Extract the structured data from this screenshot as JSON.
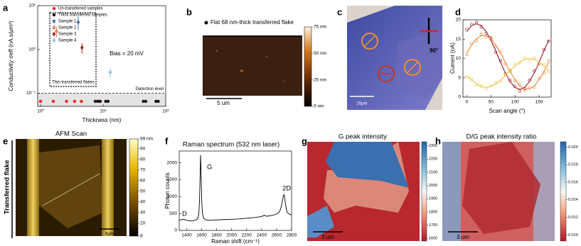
{
  "chart_data": [
    {
      "panel": "a",
      "type": "scatter",
      "xlabel": "Thickness (nm)",
      "ylabel": "Conductivity σeff (nA.s/μm²)",
      "xscale": "log",
      "yscale": "log",
      "xlim": [
        0.9,
        100
      ],
      "ylim": [
        0.05,
        10
      ],
      "xticks": [
        {
          "value": 1,
          "label": "10⁰"
        },
        {
          "value": 10,
          "label": "10¹"
        },
        {
          "value": 100,
          "label": "10²"
        }
      ],
      "yticks": [
        {
          "value": 0.1,
          "label": "10⁻¹"
        },
        {
          "value": 1,
          "label": "10⁰"
        },
        {
          "value": 10,
          "label": "10¹"
        }
      ],
      "series": [
        {
          "name": "Un-transferred samples",
          "color": "#e8262a",
          "marker": "circle",
          "x": [
            1.0,
            1.6,
            2.6,
            3.5,
            4.5,
            8.6
          ],
          "values": [
            0.065,
            0.065,
            0.065,
            0.065,
            0.065,
            0.065
          ]
        },
        {
          "name": "Thick transferred samples",
          "color": "#111111",
          "marker": "circle",
          "x": [
            7.5,
            8.2,
            9,
            11,
            12,
            44,
            48,
            70,
            76
          ],
          "values": [
            0.065,
            0.065,
            0.065,
            0.065,
            0.065,
            0.065,
            0.065,
            0.065,
            0.065
          ]
        },
        {
          "name": "Sample 1",
          "color": "#3a6fb7",
          "marker": "diamond",
          "x": [
            4.0
          ],
          "values": [
            4.2
          ],
          "errors": [
            1.4
          ]
        },
        {
          "name": "Sample 2",
          "color": "#e07b5a",
          "marker": "diamond",
          "x": [
            1.8
          ],
          "values": [
            2.6
          ],
          "errors": [
            0.7
          ]
        },
        {
          "name": "Sample 3",
          "color": "#a51c24",
          "marker": "diamond",
          "x": [
            4.6
          ],
          "values": [
            1.1
          ],
          "errors": [
            0.3
          ]
        },
        {
          "name": "Sample 4",
          "color": "#8fc1e3",
          "marker": "diamond",
          "x": [
            13
          ],
          "values": [
            0.3
          ],
          "errors": [
            0.07
          ]
        }
      ],
      "detection_level": {
        "value": 0.1,
        "label": "Detection level"
      },
      "annotations": [
        "Bias = 20 mV",
        "Thin transferred flakes"
      ]
    },
    {
      "panel": "d",
      "type": "scatter",
      "xlabel": "Scan angle (°)",
      "ylabel": "Current (nA)",
      "xlim": [
        -8,
        175
      ],
      "ylim": [
        0,
        20
      ],
      "xticks": [
        0,
        50,
        100,
        150
      ],
      "yticks": [
        0,
        5,
        10,
        15,
        20
      ],
      "x": [
        0,
        10,
        20,
        30,
        40,
        50,
        60,
        70,
        80,
        90,
        100,
        110,
        120,
        130,
        140,
        150,
        160,
        170
      ],
      "series": [
        {
          "color": "#9e1a2c",
          "marker": "open-circle",
          "values": [
            17.5,
            18.8,
            19.3,
            18.2,
            16.5,
            15.2,
            11.6,
            9.4,
            6.0,
            4.3,
            2.8,
            1.6,
            2.2,
            4.4,
            6.8,
            8.6,
            12.3,
            14.5
          ],
          "fit": [
            17.0,
            18.5,
            19.0,
            18.5,
            17.0,
            14.75,
            12.0,
            9.0,
            6.25,
            4.0,
            2.5,
            2.0,
            2.5,
            4.0,
            6.25,
            9.0,
            12.0,
            14.75
          ]
        },
        {
          "color": "#e8873a",
          "marker": "open-circle",
          "values": [
            11.0,
            13.9,
            14.6,
            16.3,
            15.5,
            15.4,
            13.0,
            11.8,
            8.6,
            6.9,
            4.2,
            3.2,
            1.8,
            2.4,
            2.6,
            4.9,
            6.2,
            9.4
          ],
          "fit": [
            11.4,
            13.5,
            15.1,
            15.9,
            15.9,
            15.1,
            13.5,
            11.4,
            9.0,
            6.6,
            4.5,
            2.9,
            2.1,
            2.1,
            2.9,
            4.5,
            6.6,
            9.0
          ]
        },
        {
          "color": "#e8c23a",
          "marker": "open-circle",
          "values": [
            5.2,
            4.7,
            3.1,
            2.9,
            2.2,
            3.0,
            3.7,
            4.1,
            5.9,
            6.6,
            8.4,
            8.8,
            10.1,
            9.7,
            10.2,
            8.7,
            8.4,
            6.6
          ],
          "fit": [
            5.6,
            4.4,
            3.4,
            2.7,
            2.5,
            2.7,
            3.4,
            4.4,
            5.6,
            6.9,
            8.1,
            9.1,
            9.8,
            10.0,
            9.8,
            9.1,
            8.1,
            6.9
          ]
        }
      ]
    },
    {
      "panel": "f",
      "type": "line",
      "title": "Raman spectrum (532 nm laser)",
      "xlabel": "Raman shift (cm⁻¹)",
      "ylabel": "Photon counts",
      "xlim": [
        1300,
        2800
      ],
      "ylim": [
        0,
        2350
      ],
      "xticks": [
        1400,
        1600,
        1800,
        2000,
        2200,
        2400,
        2600,
        2800
      ],
      "yticks": [
        0,
        500,
        1000,
        1500,
        2000
      ],
      "x": [
        1300,
        1350,
        1400,
        1450,
        1500,
        1540,
        1560,
        1570,
        1580,
        1585,
        1590,
        1600,
        1610,
        1630,
        1660,
        1700,
        1800,
        1900,
        2000,
        2100,
        2200,
        2300,
        2400,
        2440,
        2460,
        2500,
        2550,
        2600,
        2640,
        2660,
        2680,
        2690,
        2700,
        2710,
        2720,
        2740,
        2780,
        2800
      ],
      "values": [
        300,
        330,
        300,
        280,
        290,
        330,
        450,
        800,
        1700,
        2230,
        1900,
        900,
        500,
        350,
        310,
        300,
        310,
        320,
        330,
        340,
        360,
        380,
        410,
        450,
        420,
        430,
        450,
        480,
        560,
        680,
        900,
        1020,
        1060,
        950,
        750,
        530,
        470,
        460
      ],
      "color": "#000000",
      "peaks": [
        "D",
        "G",
        "2D"
      ]
    }
  ],
  "images": [
    {
      "panel": "b",
      "legend": "Flat 68 nm-thick transferred flake",
      "scale_bar": "5 um",
      "colorbar": {
        "range": [
          0,
          75
        ],
        "ticks": [
          {
            "value": 0,
            "label": "0 nm"
          },
          {
            "value": 25,
            "label": "25 nm"
          },
          {
            "value": 50,
            "label": "50 nm"
          },
          {
            "value": 75,
            "label": "75 nm"
          }
        ]
      }
    },
    {
      "panel": "c",
      "scale_bar": "10μm",
      "angle": "90°"
    },
    {
      "panel": "e",
      "title": "AFM Scan",
      "side_label": "Transferred flake",
      "scale_bar": "5μm",
      "colorbar": {
        "range": [
          8,
          99
        ],
        "ticks": [
          {
            "value": 99,
            "label": "99 nm"
          },
          90,
          80,
          70,
          60,
          50,
          40,
          30,
          20,
          8
        ]
      }
    },
    {
      "panel": "g",
      "title": "G peak intensity",
      "scale_bar": "3 um",
      "colorbar": {
        "range": [
          1580,
          2330
        ],
        "ticks": [
          1600,
          1700,
          1800,
          1900,
          2000,
          2100,
          2200,
          2300
        ]
      }
    },
    {
      "panel": "h",
      "title": "D/G peak intensity ratio",
      "scale_bar": "3 um",
      "colorbar": {
        "range": [
          0.0093,
          0.0206
        ],
        "ticks": [
          {
            "value": 0.01,
            "label": "0.010"
          },
          {
            "value": 0.012,
            "label": "0.012"
          },
          {
            "value": 0.014,
            "label": "0.014"
          },
          {
            "value": 0.016,
            "label": "0.016"
          },
          {
            "value": 0.018,
            "label": "0.018"
          },
          {
            "value": 0.02,
            "label": "0.020"
          }
        ]
      }
    }
  ]
}
